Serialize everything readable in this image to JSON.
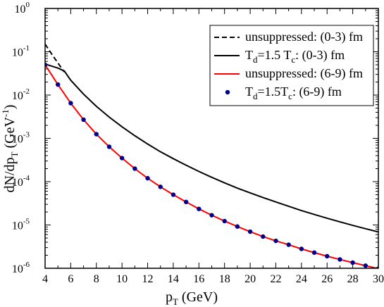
{
  "chart_data": {
    "type": "line",
    "xlabel": "p",
    "xlabel_sub": "T",
    "xlabel_unit": " (GeV)",
    "ylabel": "dN/dp",
    "ylabel_sub": "T",
    "ylabel_unit": " (GeV",
    "ylabel_exp": "-1",
    "ylabel_close": ")",
    "xlim": [
      4,
      30
    ],
    "ylim": [
      1e-06,
      1
    ],
    "yscale": "log",
    "xticks": [
      4,
      6,
      8,
      10,
      12,
      14,
      16,
      18,
      20,
      22,
      24,
      26,
      28,
      30
    ],
    "yticks_exp": [
      "0",
      "-1",
      "-2",
      "-3",
      "-4",
      "-5",
      "-6"
    ],
    "ytick_base": "10",
    "legend_position": "top-right",
    "series": [
      {
        "legend": [
          {
            "text": "unsuppressed: (0-3) fm"
          }
        ],
        "color": "#000000",
        "style": "dashed",
        "x": [
          4.0,
          4.5,
          5.0,
          5.5
        ],
        "y": [
          0.15,
          0.09,
          0.055,
          0.034
        ]
      },
      {
        "legend": [
          {
            "text": "T"
          },
          {
            "text": "d",
            "sub": true
          },
          {
            "text": "=1.5 T"
          },
          {
            "text": "c",
            "sub": true
          },
          {
            "text": ": (0-3) fm"
          }
        ],
        "color": "#000000",
        "style": "solid",
        "x": [
          4.0,
          5.0,
          5.5,
          6,
          7,
          8,
          9,
          10,
          11,
          12,
          13,
          14,
          15,
          16,
          17,
          18,
          19,
          20,
          21,
          22,
          23,
          24,
          25,
          26,
          27,
          28,
          29,
          30
        ],
        "y": [
          0.052,
          0.042,
          0.036,
          0.022,
          0.0105,
          0.0055,
          0.0031,
          0.00185,
          0.00115,
          0.00074,
          0.00049,
          0.00034,
          0.00024,
          0.000172,
          0.000126,
          9.4e-05,
          7.1e-05,
          5.5e-05,
          4.3e-05,
          3.4e-05,
          2.7e-05,
          2.15e-05,
          1.75e-05,
          1.43e-05,
          1.18e-05,
          9.8e-06,
          8.2e-06,
          6.9e-06
        ]
      },
      {
        "legend": [
          {
            "text": "unsuppressed: (6-9) fm"
          }
        ],
        "color": "#ff0000",
        "style": "solid",
        "x": [
          4,
          5,
          6,
          7,
          8,
          9,
          10,
          11,
          12,
          13,
          14,
          15,
          16,
          17,
          18,
          19,
          20,
          21,
          22,
          23,
          24,
          25,
          26,
          27,
          28,
          29,
          30
        ],
        "y": [
          0.05,
          0.0175,
          0.0065,
          0.0027,
          0.00125,
          0.00064,
          0.00035,
          0.0002,
          0.00012,
          7.6e-05,
          5e-05,
          3.4e-05,
          2.35e-05,
          1.68e-05,
          1.23e-05,
          9.2e-06,
          7e-06,
          5.4e-06,
          4.3e-06,
          3.5e-06,
          2.8e-06,
          2.3e-06,
          1.9e-06,
          1.6e-06,
          1.35e-06,
          1.15e-06,
          9.8e-07
        ]
      },
      {
        "legend": [
          {
            "text": "T"
          },
          {
            "text": "d",
            "sub": true
          },
          {
            "text": "=1.5T"
          },
          {
            "text": "c",
            "sub": true
          },
          {
            "text": ": (6-9) fm"
          }
        ],
        "color": "#00008b",
        "style": "markers",
        "x": [
          4,
          5,
          6,
          7,
          8,
          9,
          10,
          11,
          12,
          13,
          14,
          15,
          16,
          17,
          18,
          19,
          20,
          21,
          22,
          23,
          24,
          25,
          26,
          27,
          28,
          29,
          30
        ],
        "y": [
          0.05,
          0.0175,
          0.0065,
          0.0027,
          0.00125,
          0.00064,
          0.00035,
          0.0002,
          0.00012,
          7.6e-05,
          5e-05,
          3.4e-05,
          2.35e-05,
          1.68e-05,
          1.23e-05,
          9.2e-06,
          7e-06,
          5.4e-06,
          4.3e-06,
          3.5e-06,
          2.8e-06,
          2.3e-06,
          1.9e-06,
          1.6e-06,
          1.35e-06,
          1.15e-06,
          9.8e-07
        ]
      }
    ]
  }
}
